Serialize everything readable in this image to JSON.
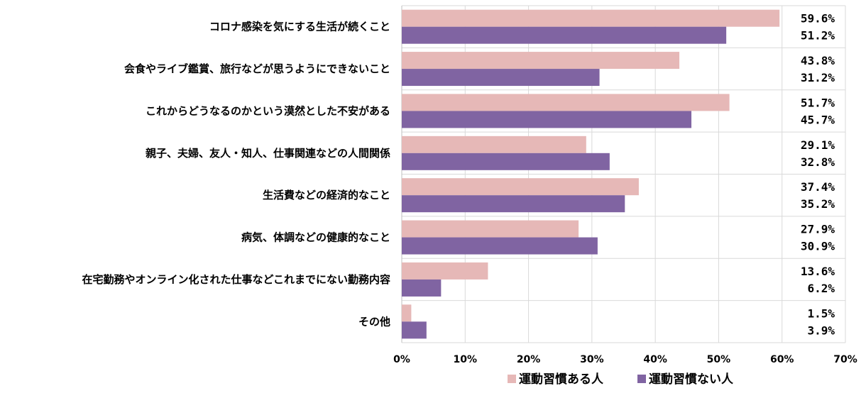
{
  "chart_data": {
    "type": "bar",
    "orientation": "horizontal",
    "categories": [
      "コロナ感染を気にする生活が続くこと",
      "会食やライブ鑑賞、旅行などが思うようにできないこと",
      "これからどうなるのかという漠然とした不安がある",
      "親子、夫婦、友人・知人、仕事関連などの人間関係",
      "生活費などの経済的なこと",
      "病気、体調などの健康的なこと",
      "在宅勤務やオンライン化された仕事などこれまでにない勤務内容",
      "その他"
    ],
    "series": [
      {
        "name": "運動習慣ある人",
        "color": "#e6b8b7",
        "values": [
          59.6,
          43.8,
          51.7,
          29.1,
          37.4,
          27.9,
          13.6,
          1.5
        ],
        "labels": [
          "59.6%",
          "43.8%",
          "51.7%",
          "29.1%",
          "37.4%",
          "27.9%",
          "13.6%",
          "1.5%"
        ]
      },
      {
        "name": "運動習慣ない人",
        "color": "#8064a2",
        "values": [
          51.2,
          31.2,
          45.7,
          32.8,
          35.2,
          30.9,
          6.2,
          3.9
        ],
        "labels": [
          "51.2%",
          "31.2%",
          "45.7%",
          "32.8%",
          "35.2%",
          "30.9%",
          "6.2%",
          "3.9%"
        ]
      }
    ],
    "xlim": [
      0,
      70
    ],
    "xticks": [
      "0%",
      "10%",
      "20%",
      "30%",
      "40%",
      "50%",
      "60%",
      "70%"
    ],
    "xtick_values": [
      0,
      10,
      20,
      30,
      40,
      50,
      60,
      70
    ],
    "title": "",
    "xlabel": "",
    "ylabel": "",
    "grid": true,
    "legend_position": "bottom"
  }
}
